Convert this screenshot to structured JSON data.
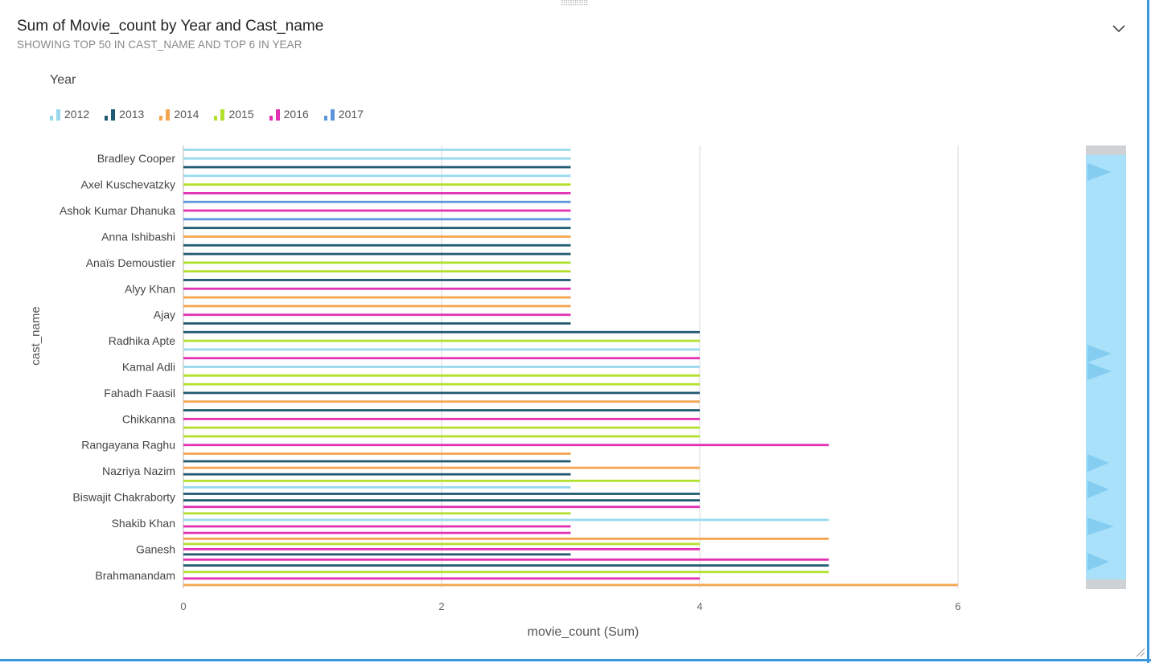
{
  "header": {
    "title": "Sum of Movie_count by Year and Cast_name",
    "subtitle": "SHOWING TOP 50 IN CAST_NAME AND TOP 6 IN YEAR"
  },
  "legend": {
    "title": "Year",
    "items": [
      {
        "label": "2012",
        "color": "#99d9ed"
      },
      {
        "label": "2013",
        "color": "#215a72"
      },
      {
        "label": "2014",
        "color": "#f5a54f"
      },
      {
        "label": "2015",
        "color": "#b2e02c"
      },
      {
        "label": "2016",
        "color": "#e231b4"
      },
      {
        "label": "2017",
        "color": "#5c95dc"
      }
    ]
  },
  "icons": {
    "expand": "chevron-down-icon",
    "drag": "drag-handle-icon",
    "resize": "resize-grip-icon"
  },
  "chart_data": {
    "type": "bar",
    "orientation": "horizontal",
    "title": "Sum of Movie_count by Year and Cast_name",
    "xlabel": "movie_count (Sum)",
    "ylabel": "cast_name",
    "xlim": [
      0,
      7.2
    ],
    "xticks": [
      0,
      2,
      4,
      6
    ],
    "grid": true,
    "legend_position": "top-left",
    "scrollbar": "right",
    "series_names": [
      "2012",
      "2013",
      "2014",
      "2015",
      "2016",
      "2017"
    ],
    "categories": [
      {
        "name": "Bradley Cooper",
        "label": "Bradley Cooper",
        "bars": [
          {
            "year": "2012",
            "value": 3
          },
          {
            "year": "2012",
            "value": 3
          },
          {
            "year": "2013",
            "value": 3
          }
        ]
      },
      {
        "name": "Axel Kuschevatzky",
        "label": "Axel Kuschevatzky",
        "bars": [
          {
            "year": "2012",
            "value": 3
          },
          {
            "year": "2015",
            "value": 3
          },
          {
            "year": "2016",
            "value": 3
          }
        ]
      },
      {
        "name": "Ashok Kumar Dhanuka",
        "label": "Ashok Kumar Dhanuka",
        "bars": [
          {
            "year": "2017",
            "value": 3
          },
          {
            "year": "2016",
            "value": 3
          },
          {
            "year": "2017",
            "value": 3
          }
        ]
      },
      {
        "name": "Anna Ishibashi",
        "label": "Anna Ishibashi",
        "bars": [
          {
            "year": "2013",
            "value": 3
          },
          {
            "year": "2014",
            "value": 3
          },
          {
            "year": "2013",
            "value": 3
          }
        ]
      },
      {
        "name": "Anaïs Demoustier",
        "label": "Anaïs Demoustier",
        "bars": [
          {
            "year": "2013",
            "value": 3
          },
          {
            "year": "2015",
            "value": 3
          },
          {
            "year": "2015",
            "value": 3
          }
        ]
      },
      {
        "name": "Alyy Khan",
        "label": "Alyy Khan",
        "bars": [
          {
            "year": "2013",
            "value": 3
          },
          {
            "year": "2016",
            "value": 3
          },
          {
            "year": "2014",
            "value": 3
          }
        ]
      },
      {
        "name": "Ajay",
        "label": "Ajay",
        "bars": [
          {
            "year": "2014",
            "value": 3
          },
          {
            "year": "2016",
            "value": 3
          },
          {
            "year": "2013",
            "value": 3
          }
        ]
      },
      {
        "name": "Radhika Apte",
        "label": "Radhika Apte",
        "bars": [
          {
            "year": "2013",
            "value": 4
          },
          {
            "year": "2015",
            "value": 4
          },
          {
            "year": "2012",
            "value": 4
          }
        ]
      },
      {
        "name": "Kamal Adli",
        "label": "Kamal Adli",
        "bars": [
          {
            "year": "2016",
            "value": 4
          },
          {
            "year": "2012",
            "value": 4
          },
          {
            "year": "2015",
            "value": 4
          }
        ]
      },
      {
        "name": "Fahadh Faasil",
        "label": "Fahadh Faasil",
        "bars": [
          {
            "year": "2015",
            "value": 4
          },
          {
            "year": "2013",
            "value": 4
          },
          {
            "year": "2014",
            "value": 4
          }
        ]
      },
      {
        "name": "Chikkanna",
        "label": "Chikkanna",
        "bars": [
          {
            "year": "2013",
            "value": 4
          },
          {
            "year": "2016",
            "value": 4
          },
          {
            "year": "2015",
            "value": 4
          }
        ]
      },
      {
        "name": "Rangayana Raghu",
        "label": "Rangayana Raghu",
        "bars": [
          {
            "year": "2015",
            "value": 4
          },
          {
            "year": "2016",
            "value": 5
          },
          {
            "year": "2014",
            "value": 3
          }
        ]
      },
      {
        "name": "Nazriya Nazim",
        "label": "Nazriya Nazim",
        "bars": [
          {
            "year": "2013",
            "value": 3
          },
          {
            "year": "2014",
            "value": 4
          },
          {
            "year": "2013",
            "value": 3
          },
          {
            "year": "2015",
            "value": 4
          }
        ]
      },
      {
        "name": "Biswajit Chakraborty",
        "label": "Biswajit Chakraborty",
        "bars": [
          {
            "year": "2012",
            "value": 3
          },
          {
            "year": "2013",
            "value": 4
          },
          {
            "year": "2013",
            "value": 4
          },
          {
            "year": "2016",
            "value": 4
          }
        ]
      },
      {
        "name": "Shakib Khan",
        "label": "Shakib Khan",
        "bars": [
          {
            "year": "2015",
            "value": 3
          },
          {
            "year": "2012",
            "value": 5
          },
          {
            "year": "2016",
            "value": 3
          },
          {
            "year": "2016",
            "value": 3
          }
        ]
      },
      {
        "name": "Ganesh",
        "label": "Ganesh",
        "bars": [
          {
            "year": "2014",
            "value": 5
          },
          {
            "year": "2015",
            "value": 4
          },
          {
            "year": "2016",
            "value": 4
          },
          {
            "year": "2013",
            "value": 3
          },
          {
            "year": "2016",
            "value": 5
          }
        ]
      },
      {
        "name": "Brahmanandam",
        "label": "Brahmanandam",
        "bars": [
          {
            "year": "2013",
            "value": 5
          },
          {
            "year": "2015",
            "value": 5
          },
          {
            "year": "2016",
            "value": 4
          },
          {
            "year": "2014",
            "value": 6
          }
        ]
      }
    ]
  }
}
